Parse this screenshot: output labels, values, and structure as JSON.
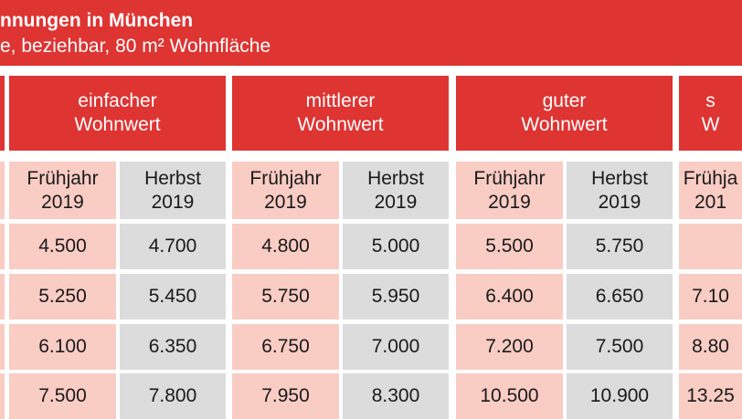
{
  "title": "nnungen in München",
  "subtitle": "e, beziehbar, 80 m² Wohnfläche",
  "columns": [
    {
      "label": "einfacher\nWohnwert"
    },
    {
      "label": "mittlerer\nWohnwert"
    },
    {
      "label": "guter\nWohnwert"
    },
    {
      "label": "s\nW"
    }
  ],
  "periods": [
    "Frühjahr\n2019",
    "Herbst\n2019",
    "Frühjahr\n2019",
    "Herbst\n2019",
    "Frühjahr\n2019",
    "Herbst\n2019",
    "Frühja\n201"
  ],
  "rows": [
    [
      "4.500",
      "4.700",
      "4.800",
      "5.000",
      "5.500",
      "5.750",
      ""
    ],
    [
      "5.250",
      "5.450",
      "5.750",
      "5.950",
      "6.400",
      "6.650",
      "7.10"
    ],
    [
      "6.100",
      "6.350",
      "6.750",
      "7.000",
      "7.200",
      "7.500",
      "8.80"
    ],
    [
      "7.500",
      "7.800",
      "7.950",
      "8.300",
      "10.500",
      "10.900",
      "13.25"
    ]
  ],
  "colors": {
    "header_red": "#de3432",
    "spring_pink": "#f9ccc4",
    "autumn_grey": "#dcdcdc"
  }
}
